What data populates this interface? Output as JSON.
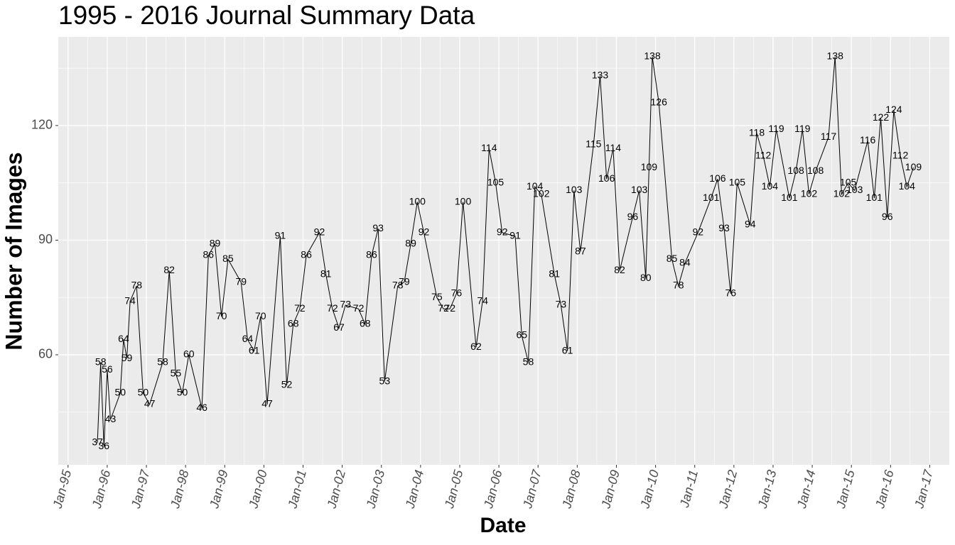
{
  "chart_data": {
    "type": "line",
    "title": "1995 - 2016 Journal Summary Data",
    "x_label": "Date",
    "y_label": "Number of Images",
    "x": [
      "1995-10",
      "1995-11",
      "1995-12",
      "1996-01",
      "1996-02",
      "1996-05",
      "1996-06",
      "1996-07",
      "1996-08",
      "1996-10",
      "1996-12",
      "1997-02",
      "1997-06",
      "1997-08",
      "1997-10",
      "1997-12",
      "1998-02",
      "1998-06",
      "1998-08",
      "1998-10",
      "1998-12",
      "1999-02",
      "1999-06",
      "1999-08",
      "1999-10",
      "1999-12",
      "2000-02",
      "2000-06",
      "2000-08",
      "2000-10",
      "2000-12",
      "2001-02",
      "2001-06",
      "2001-08",
      "2001-10",
      "2001-12",
      "2002-02",
      "2002-06",
      "2002-08",
      "2002-10",
      "2002-12",
      "2003-02",
      "2003-06",
      "2003-08",
      "2003-10",
      "2003-12",
      "2004-02",
      "2004-06",
      "2004-08",
      "2004-10",
      "2004-12",
      "2005-02",
      "2005-06",
      "2005-08",
      "2005-10",
      "2005-12",
      "2006-02",
      "2006-06",
      "2006-08",
      "2006-10",
      "2006-12",
      "2007-02",
      "2007-06",
      "2007-08",
      "2007-10",
      "2007-12",
      "2008-02",
      "2008-06",
      "2008-08",
      "2008-10",
      "2008-12",
      "2009-02",
      "2009-06",
      "2009-08",
      "2009-10",
      "2009-11",
      "2009-12",
      "2010-02",
      "2010-06",
      "2010-08",
      "2010-10",
      "2011-02",
      "2011-06",
      "2011-08",
      "2011-10",
      "2011-12",
      "2012-02",
      "2012-06",
      "2012-08",
      "2012-10",
      "2012-12",
      "2013-02",
      "2013-06",
      "2013-08",
      "2013-10",
      "2013-12",
      "2014-02",
      "2014-06",
      "2014-08",
      "2014-10",
      "2014-12",
      "2015-02",
      "2015-06",
      "2015-08",
      "2015-10",
      "2015-12",
      "2016-02",
      "2016-04",
      "2016-06",
      "2016-08"
    ],
    "values": [
      37,
      58,
      36,
      56,
      43,
      50,
      64,
      59,
      74,
      78,
      50,
      47,
      58,
      82,
      55,
      50,
      60,
      46,
      86,
      89,
      70,
      85,
      79,
      64,
      61,
      70,
      47,
      91,
      52,
      68,
      72,
      86,
      92,
      81,
      72,
      67,
      73,
      72,
      68,
      86,
      93,
      53,
      78,
      79,
      89,
      100,
      92,
      75,
      72,
      72,
      76,
      100,
      62,
      74,
      114,
      105,
      92,
      91,
      65,
      58,
      104,
      102,
      81,
      73,
      61,
      103,
      87,
      115,
      133,
      106,
      114,
      82,
      96,
      103,
      80,
      109,
      138,
      126,
      85,
      78,
      84,
      92,
      101,
      106,
      93,
      76,
      105,
      94,
      118,
      112,
      104,
      119,
      101,
      108,
      119,
      102,
      108,
      117,
      138,
      102,
      105,
      103,
      116,
      101,
      122,
      96,
      124,
      112,
      104,
      109
    ],
    "color": "#000000",
    "xlim": [
      "1994-10",
      "2017-07"
    ],
    "ylim": [
      31.2,
      143.2
    ],
    "xticks": [
      {
        "value": "1995-01",
        "label": "Jan-95"
      },
      {
        "value": "1996-01",
        "label": "Jan-96"
      },
      {
        "value": "1997-01",
        "label": "Jan-97"
      },
      {
        "value": "1998-01",
        "label": "Jan-98"
      },
      {
        "value": "1999-01",
        "label": "Jan-99"
      },
      {
        "value": "2000-01",
        "label": "Jan-00"
      },
      {
        "value": "2001-01",
        "label": "Jan-01"
      },
      {
        "value": "2002-01",
        "label": "Jan-02"
      },
      {
        "value": "2003-01",
        "label": "Jan-03"
      },
      {
        "value": "2004-01",
        "label": "Jan-04"
      },
      {
        "value": "2005-01",
        "label": "Jan-05"
      },
      {
        "value": "2006-01",
        "label": "Jan-06"
      },
      {
        "value": "2007-01",
        "label": "Jan-07"
      },
      {
        "value": "2008-01",
        "label": "Jan-08"
      },
      {
        "value": "2009-01",
        "label": "Jan-09"
      },
      {
        "value": "2010-01",
        "label": "Jan-10"
      },
      {
        "value": "2011-01",
        "label": "Jan-11"
      },
      {
        "value": "2012-01",
        "label": "Jan-12"
      },
      {
        "value": "2013-01",
        "label": "Jan-13"
      },
      {
        "value": "2014-01",
        "label": "Jan-14"
      },
      {
        "value": "2015-01",
        "label": "Jan-15"
      },
      {
        "value": "2016-01",
        "label": "Jan-16"
      },
      {
        "value": "2017-01",
        "label": "Jan-17"
      }
    ],
    "yticks": [
      60,
      90,
      120
    ],
    "grid": true
  }
}
